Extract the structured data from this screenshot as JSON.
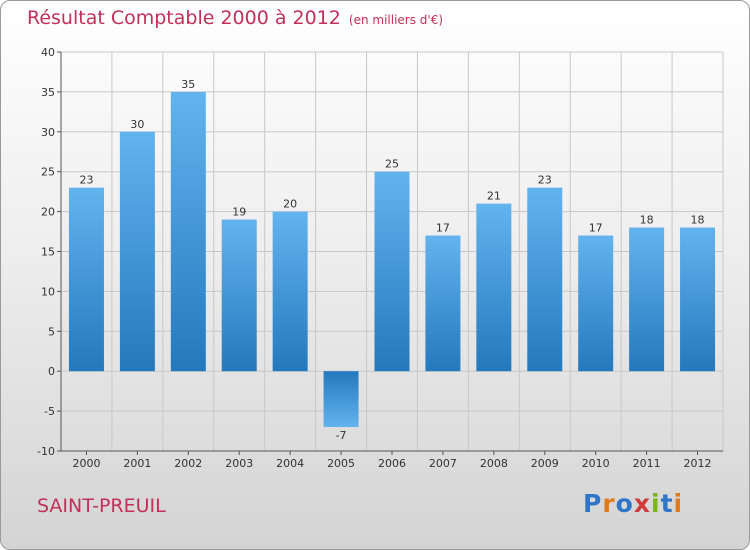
{
  "title": "Résultat Comptable 2000 à 2012",
  "unit": "(en milliers d'€)",
  "commune": "SAINT-PREUIL",
  "brand": {
    "text": "Proxiti",
    "letter_colors": [
      "#2f76c8",
      "#e07a1c",
      "#2f76c8",
      "#d23a3a",
      "#7ab51d",
      "#2f76c8",
      "#e07a1c"
    ]
  },
  "colors": {
    "title": "#c2305a",
    "bar_light": "#63b3ee",
    "bar_dark": "#2479bd",
    "grid": "#c8c8c8",
    "axis": "#555555"
  },
  "chart_data": {
    "type": "bar",
    "title": "Résultat Comptable 2000 à 2012",
    "subtitle": "(en milliers d'€)",
    "xlabel": "",
    "ylabel": "",
    "categories": [
      "2000",
      "2001",
      "2002",
      "2003",
      "2004",
      "2005",
      "2006",
      "2007",
      "2008",
      "2009",
      "2010",
      "2011",
      "2012"
    ],
    "values": [
      23,
      30,
      35,
      19,
      20,
      -7,
      25,
      17,
      21,
      23,
      17,
      18,
      18
    ],
    "ylim": [
      -10,
      40
    ],
    "yticks": [
      -10,
      -5,
      0,
      5,
      10,
      15,
      20,
      25,
      30,
      35,
      40
    ],
    "grid": true
  }
}
